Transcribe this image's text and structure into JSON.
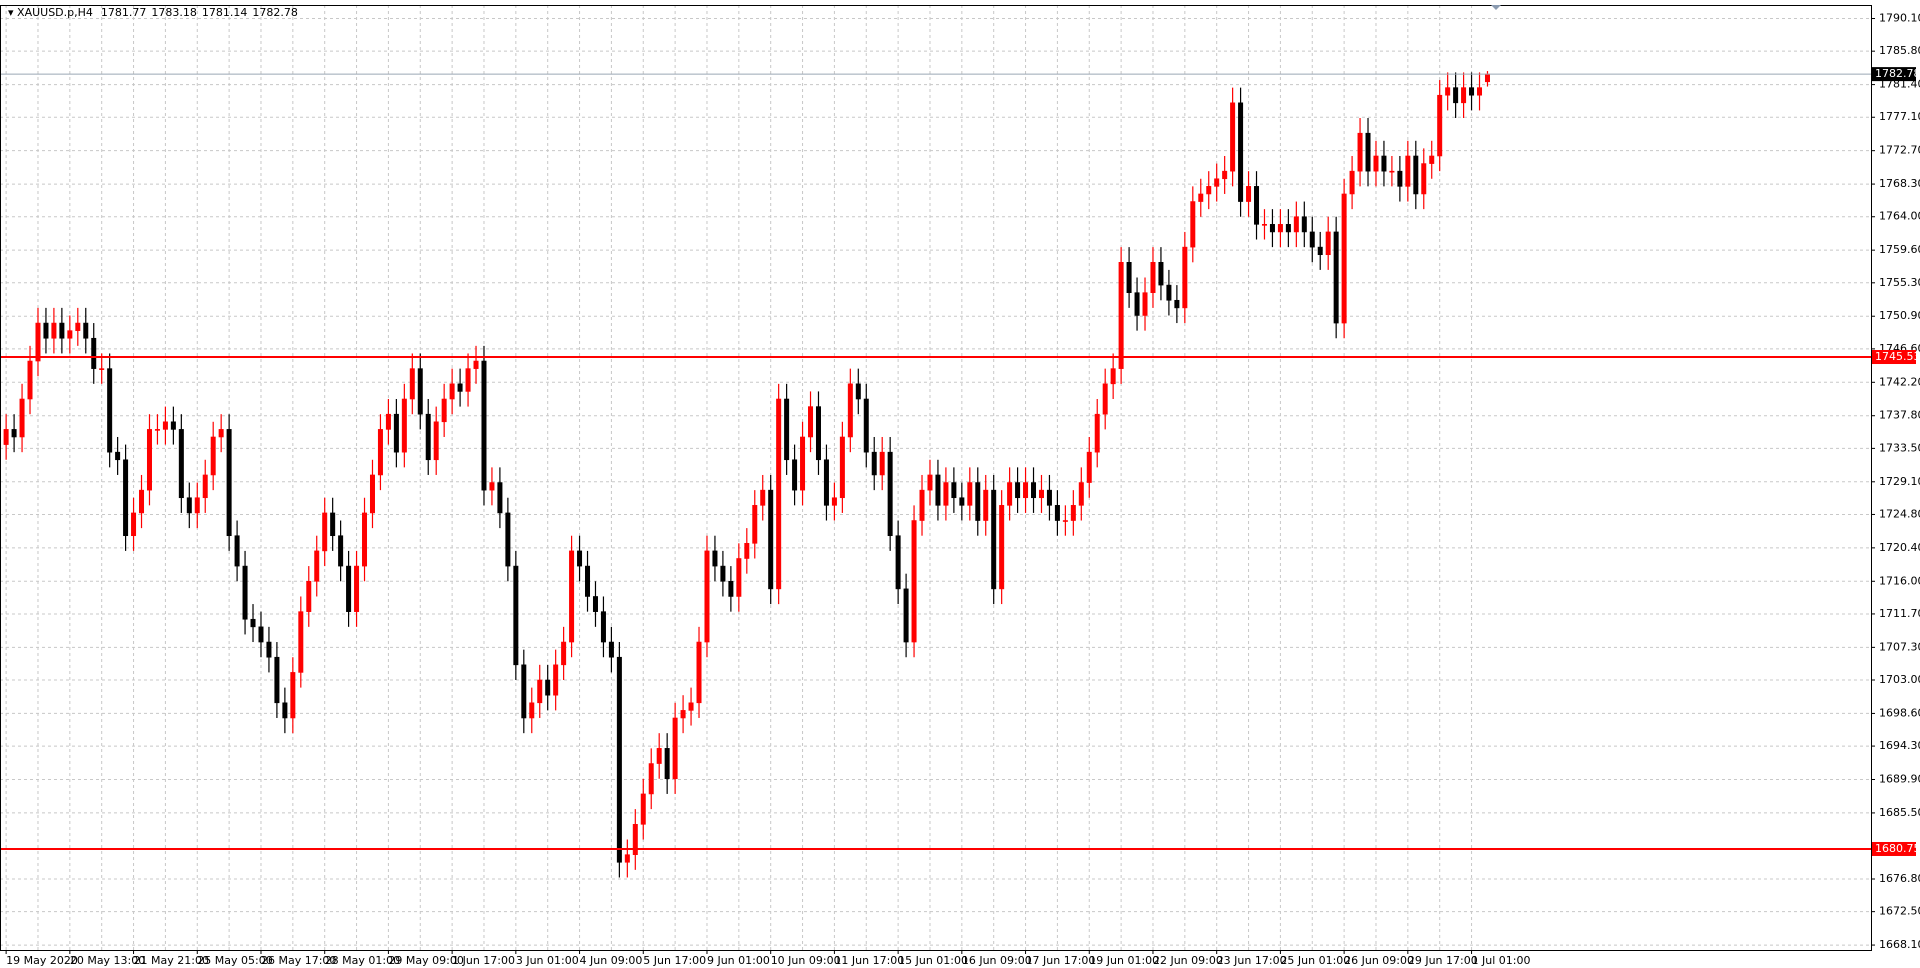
{
  "chart_data": {
    "type": "candlestick",
    "symbol": "XAUUSD.p,H4",
    "bull_color": "#ff0000",
    "bear_color": "#000000",
    "grid": true,
    "ylim": [
      1667.45,
      1791.88
    ],
    "yticks": [
      {
        "value": 1790.1,
        "label": "1790.10"
      },
      {
        "value": 1785.8,
        "label": "1785.80"
      },
      {
        "value": 1781.4,
        "label": "1781.40"
      },
      {
        "value": 1777.1,
        "label": "1777.10"
      },
      {
        "value": 1772.7,
        "label": "1772.70"
      },
      {
        "value": 1768.3,
        "label": "1768.30"
      },
      {
        "value": 1764.0,
        "label": "1764.00"
      },
      {
        "value": 1759.6,
        "label": "1759.60"
      },
      {
        "value": 1755.3,
        "label": "1755.30"
      },
      {
        "value": 1750.9,
        "label": "1750.90"
      },
      {
        "value": 1746.6,
        "label": "1746.60"
      },
      {
        "value": 1742.2,
        "label": "1742.20"
      },
      {
        "value": 1737.8,
        "label": "1737.80"
      },
      {
        "value": 1733.5,
        "label": "1733.50"
      },
      {
        "value": 1729.1,
        "label": "1729.10"
      },
      {
        "value": 1724.8,
        "label": "1724.80"
      },
      {
        "value": 1720.4,
        "label": "1720.40"
      },
      {
        "value": 1716.0,
        "label": "1716.00"
      },
      {
        "value": 1711.7,
        "label": "1711.70"
      },
      {
        "value": 1707.3,
        "label": "1707.30"
      },
      {
        "value": 1703.0,
        "label": "1703.00"
      },
      {
        "value": 1698.6,
        "label": "1698.60"
      },
      {
        "value": 1694.3,
        "label": "1694.30"
      },
      {
        "value": 1689.9,
        "label": "1689.90"
      },
      {
        "value": 1685.5,
        "label": "1685.50"
      },
      {
        "value": 1676.8,
        "label": "1676.80"
      },
      {
        "value": 1672.5,
        "label": "1672.50"
      },
      {
        "value": 1668.1,
        "label": "1668.10"
      }
    ],
    "hlines": [
      {
        "value": 1745.53,
        "color": "#ff0000"
      },
      {
        "value": 1680.75,
        "color": "#ff0000"
      }
    ],
    "last_line_color": "#9aa6b4",
    "categories": [
      "19 May 2020",
      null,
      null,
      null,
      null,
      null,
      null,
      null,
      "20 May 13:00",
      null,
      null,
      null,
      null,
      null,
      null,
      null,
      "21 May 21:00",
      null,
      null,
      null,
      null,
      null,
      null,
      null,
      "25 May 05:00",
      null,
      null,
      null,
      null,
      null,
      null,
      null,
      "26 May 17:00",
      null,
      null,
      null,
      null,
      null,
      null,
      null,
      "28 May 01:00",
      null,
      null,
      null,
      null,
      null,
      null,
      null,
      "29 May 09:00",
      null,
      null,
      null,
      null,
      null,
      null,
      null,
      "1 Jun 17:00",
      null,
      null,
      null,
      null,
      null,
      null,
      null,
      "3 Jun 01:00",
      null,
      null,
      null,
      null,
      null,
      null,
      null,
      "4 Jun 09:00",
      null,
      null,
      null,
      null,
      null,
      null,
      null,
      "5 Jun 17:00",
      null,
      null,
      null,
      null,
      null,
      null,
      null,
      "9 Jun 01:00",
      null,
      null,
      null,
      null,
      null,
      null,
      null,
      "10 Jun 09:00",
      null,
      null,
      null,
      null,
      null,
      null,
      null,
      "11 Jun 17:00",
      null,
      null,
      null,
      null,
      null,
      null,
      null,
      "15 Jun 01:00",
      null,
      null,
      null,
      null,
      null,
      null,
      null,
      "16 Jun 09:00",
      null,
      null,
      null,
      null,
      null,
      null,
      null,
      "17 Jun 17:00",
      null,
      null,
      null,
      null,
      null,
      null,
      null,
      "19 Jun 01:00",
      null,
      null,
      null,
      null,
      null,
      null,
      null,
      "22 Jun 09:00",
      null,
      null,
      null,
      null,
      null,
      null,
      null,
      "23 Jun 17:00",
      null,
      null,
      null,
      null,
      null,
      null,
      null,
      "25 Jun 01:00",
      null,
      null,
      null,
      null,
      null,
      null,
      null,
      "26 Jun 09:00",
      null,
      null,
      null,
      null,
      null,
      null,
      null,
      "29 Jun 17:00",
      null,
      null,
      null,
      null,
      null,
      null,
      null,
      "1 Jul 01:00",
      null,
      null
    ],
    "open": [
      1734,
      1736,
      1735,
      1740,
      1745,
      1750,
      1748,
      1750,
      1748,
      1749,
      1750,
      1748,
      1744,
      1744,
      1733,
      1732,
      1722,
      1725,
      1728,
      1736,
      1736,
      1737,
      1736,
      1727,
      1725,
      1727,
      1730,
      1735,
      1736,
      1722,
      1718,
      1711,
      1710,
      1708,
      1706,
      1700,
      1698,
      1704,
      1712,
      1716,
      1720,
      1725,
      1722,
      1718,
      1712,
      1718,
      1725,
      1730,
      1736,
      1738,
      1733,
      1740,
      1744,
      1738,
      1732,
      1737,
      1740,
      1742,
      1741,
      1744,
      1745,
      1728,
      1729,
      1725,
      1718,
      1705,
      1698,
      1700,
      1703,
      1701,
      1705,
      1708,
      1720,
      1718,
      1714,
      1712,
      1708,
      1706,
      1679,
      1680,
      1684,
      1688,
      1692,
      1694,
      1690,
      1698,
      1699,
      1700,
      1708,
      1720,
      1718,
      1716,
      1714,
      1719,
      1721,
      1726,
      1728,
      1715,
      1740,
      1732,
      1728,
      1735,
      1739,
      1732,
      1726,
      1727,
      1735,
      1742,
      1740,
      1733,
      1730,
      1733,
      1722,
      1715,
      1708,
      1724,
      1728,
      1730,
      1726,
      1729,
      1727,
      1726,
      1729,
      1724,
      1728,
      1715,
      1726,
      1729,
      1727,
      1729,
      1727,
      1728,
      1726,
      1724,
      1724,
      1726,
      1729,
      1733,
      1738,
      1742,
      1744,
      1758,
      1754,
      1751,
      1754,
      1758,
      1755,
      1753,
      1752,
      1760,
      1766,
      1767,
      1768,
      1769,
      1770,
      1779,
      1766,
      1768,
      1763,
      1763,
      1762,
      1763,
      1762,
      1764,
      1762,
      1760,
      1759,
      1762,
      1750,
      1767,
      1770,
      1775,
      1770,
      1772,
      1770,
      1770,
      1768,
      1772,
      1767,
      1771,
      1772,
      1780,
      1781,
      1779,
      1781,
      1780,
      1781.77
    ],
    "high": [
      1738,
      1738,
      1742,
      1747,
      1752,
      1752,
      1752,
      1752,
      1751,
      1752,
      1752,
      1750,
      1746,
      1746,
      1735,
      1734,
      1727,
      1730,
      1738,
      1738,
      1739,
      1739,
      1738,
      1729,
      1729,
      1732,
      1737,
      1738,
      1738,
      1724,
      1720,
      1713,
      1712,
      1710,
      1708,
      1702,
      1706,
      1714,
      1718,
      1722,
      1727,
      1727,
      1724,
      1720,
      1720,
      1727,
      1732,
      1738,
      1740,
      1740,
      1742,
      1746,
      1746,
      1740,
      1739,
      1742,
      1744,
      1744,
      1746,
      1747,
      1747,
      1731,
      1731,
      1727,
      1720,
      1707,
      1702,
      1705,
      1705,
      1707,
      1710,
      1722,
      1722,
      1720,
      1716,
      1714,
      1710,
      1708,
      1682,
      1686,
      1690,
      1694,
      1696,
      1696,
      1700,
      1701,
      1702,
      1710,
      1722,
      1722,
      1720,
      1718,
      1721,
      1723,
      1728,
      1730,
      1730,
      1742,
      1742,
      1734,
      1737,
      1741,
      1741,
      1734,
      1729,
      1737,
      1744,
      1744,
      1742,
      1735,
      1735,
      1735,
      1724,
      1717,
      1726,
      1730,
      1732,
      1732,
      1731,
      1731,
      1729,
      1731,
      1731,
      1730,
      1730,
      1728,
      1731,
      1731,
      1731,
      1731,
      1730,
      1730,
      1728,
      1726,
      1728,
      1731,
      1735,
      1740,
      1744,
      1746,
      1760,
      1760,
      1756,
      1756,
      1760,
      1760,
      1757,
      1755,
      1762,
      1768,
      1769,
      1770,
      1771,
      1772,
      1781,
      1781,
      1770,
      1770,
      1765,
      1765,
      1765,
      1765,
      1766,
      1766,
      1764,
      1762,
      1764,
      1764,
      1769,
      1772,
      1777,
      1777,
      1774,
      1774,
      1772,
      1772,
      1774,
      1774,
      1773,
      1774,
      1782,
      1783,
      1783,
      1783,
      1783,
      1783,
      1783.18
    ],
    "low": [
      1732,
      1733,
      1733,
      1738,
      1743,
      1746,
      1746,
      1746,
      1746,
      1747,
      1746,
      1742,
      1742,
      1731,
      1730,
      1720,
      1720,
      1723,
      1726,
      1734,
      1734,
      1734,
      1725,
      1723,
      1723,
      1725,
      1728,
      1733,
      1720,
      1716,
      1709,
      1708,
      1706,
      1704,
      1698,
      1696,
      1696,
      1702,
      1710,
      1714,
      1718,
      1720,
      1716,
      1710,
      1710,
      1716,
      1723,
      1728,
      1734,
      1731,
      1731,
      1738,
      1736,
      1730,
      1730,
      1735,
      1738,
      1739,
      1739,
      1742,
      1726,
      1726,
      1723,
      1716,
      1703,
      1696,
      1696,
      1698,
      1699,
      1699,
      1703,
      1706,
      1716,
      1712,
      1710,
      1706,
      1704,
      1677,
      1677,
      1678,
      1682,
      1686,
      1690,
      1688,
      1688,
      1696,
      1697,
      1698,
      1706,
      1716,
      1714,
      1712,
      1712,
      1717,
      1719,
      1724,
      1713,
      1713,
      1730,
      1726,
      1726,
      1733,
      1730,
      1724,
      1724,
      1725,
      1733,
      1738,
      1731,
      1728,
      1728,
      1720,
      1713,
      1706,
      1706,
      1722,
      1726,
      1724,
      1724,
      1725,
      1724,
      1724,
      1722,
      1722,
      1713,
      1713,
      1724,
      1725,
      1725,
      1725,
      1725,
      1724,
      1722,
      1722,
      1722,
      1724,
      1727,
      1731,
      1736,
      1740,
      1742,
      1752,
      1749,
      1749,
      1752,
      1753,
      1751,
      1750,
      1750,
      1758,
      1764,
      1765,
      1766,
      1767,
      1768,
      1764,
      1764,
      1761,
      1761,
      1760,
      1760,
      1760,
      1760,
      1760,
      1758,
      1757,
      1757,
      1748,
      1748,
      1765,
      1768,
      1768,
      1768,
      1768,
      1768,
      1766,
      1766,
      1765,
      1765,
      1769,
      1770,
      1778,
      1777,
      1777,
      1778,
      1778,
      1781.14
    ],
    "close": [
      1736,
      1735,
      1740,
      1745,
      1750,
      1748,
      1750,
      1748,
      1749,
      1750,
      1748,
      1744,
      1744,
      1733,
      1732,
      1722,
      1725,
      1728,
      1736,
      1736,
      1737,
      1736,
      1727,
      1725,
      1727,
      1730,
      1735,
      1736,
      1722,
      1718,
      1711,
      1710,
      1708,
      1706,
      1700,
      1698,
      1704,
      1712,
      1716,
      1720,
      1725,
      1722,
      1718,
      1712,
      1718,
      1725,
      1730,
      1736,
      1738,
      1733,
      1740,
      1744,
      1738,
      1732,
      1737,
      1740,
      1742,
      1741,
      1744,
      1745,
      1728,
      1729,
      1725,
      1718,
      1705,
      1698,
      1700,
      1703,
      1701,
      1705,
      1708,
      1720,
      1718,
      1714,
      1712,
      1708,
      1706,
      1679,
      1680,
      1684,
      1688,
      1692,
      1694,
      1690,
      1698,
      1699,
      1700,
      1708,
      1720,
      1718,
      1716,
      1714,
      1719,
      1721,
      1726,
      1728,
      1715,
      1740,
      1732,
      1728,
      1735,
      1739,
      1732,
      1726,
      1727,
      1735,
      1742,
      1740,
      1733,
      1730,
      1733,
      1722,
      1715,
      1708,
      1724,
      1728,
      1730,
      1726,
      1729,
      1727,
      1726,
      1729,
      1724,
      1728,
      1715,
      1726,
      1729,
      1727,
      1729,
      1727,
      1728,
      1726,
      1724,
      1724,
      1726,
      1729,
      1733,
      1738,
      1742,
      1744,
      1758,
      1754,
      1751,
      1754,
      1758,
      1755,
      1753,
      1752,
      1760,
      1766,
      1767,
      1768,
      1769,
      1770,
      1779,
      1766,
      1768,
      1763,
      1763,
      1762,
      1763,
      1762,
      1764,
      1762,
      1760,
      1759,
      1762,
      1750,
      1767,
      1770,
      1775,
      1770,
      1772,
      1770,
      1770,
      1768,
      1772,
      1767,
      1771,
      1772,
      1780,
      1781,
      1779,
      1781,
      1780,
      1781,
      1782.78
    ]
  }
}
